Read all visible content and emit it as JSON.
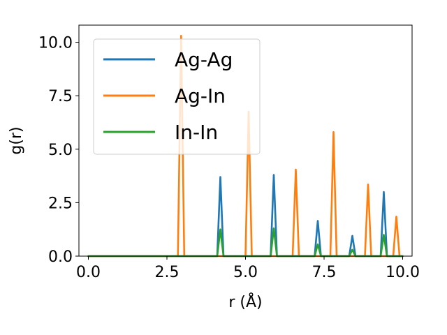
{
  "chart_data": {
    "type": "line",
    "xlabel": "r (Å)",
    "ylabel": "g(r)",
    "xlim": [
      -0.3,
      10.3
    ],
    "ylim": [
      0,
      10.8
    ],
    "xticks": [
      "0.0",
      "2.5",
      "5.0",
      "7.5",
      "10.0"
    ],
    "xtick_values": [
      0,
      2.5,
      5,
      7.5,
      10
    ],
    "yticks": [
      "0.0",
      "2.5",
      "5.0",
      "7.5",
      "10.0"
    ],
    "ytick_values": [
      0,
      2.5,
      5,
      7.5,
      10
    ],
    "grid": false,
    "legend_position": "top-left",
    "peak_half_width": 0.1,
    "series": [
      {
        "name": "Ag-Ag",
        "color": "#1f77b4",
        "peaks": [
          [
            4.2,
            3.7
          ],
          [
            5.9,
            3.8
          ],
          [
            7.3,
            1.65
          ],
          [
            8.4,
            0.95
          ],
          [
            9.4,
            3.0
          ]
        ]
      },
      {
        "name": "Ag-In",
        "color": "#ff7f0e",
        "peaks": [
          [
            2.95,
            10.3
          ],
          [
            5.1,
            6.75
          ],
          [
            6.6,
            4.05
          ],
          [
            7.8,
            5.8
          ],
          [
            8.9,
            3.35
          ],
          [
            9.8,
            1.85
          ]
        ]
      },
      {
        "name": "In-In",
        "color": "#2ca02c",
        "peaks": [
          [
            4.2,
            1.25
          ],
          [
            5.9,
            1.3
          ],
          [
            7.3,
            0.55
          ],
          [
            8.4,
            0.3
          ],
          [
            9.4,
            1.0
          ]
        ]
      }
    ]
  }
}
